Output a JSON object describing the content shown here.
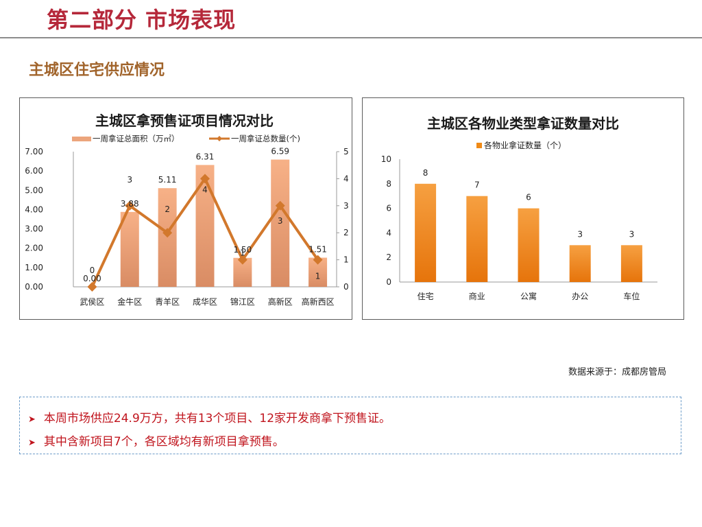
{
  "header": {
    "title": "第二部分 市场表现"
  },
  "section": {
    "title": "主城区住宅供应情况"
  },
  "chart_data": [
    {
      "type": "bar",
      "title": "主城区拿预售证项目情况对比",
      "categories": [
        "武侯区",
        "金牛区",
        "青羊区",
        "成华区",
        "锦江区",
        "高新区",
        "高新西区"
      ],
      "series": [
        {
          "name": "一周拿证总面积（万㎡）",
          "type": "bar",
          "axis": "left",
          "values": [
            0.0,
            3.88,
            5.11,
            6.31,
            1.5,
            6.59,
            1.51
          ],
          "value_labels": [
            "0.00",
            "3.88",
            "5.11",
            "6.31",
            "1.50",
            "6.59",
            "1.51"
          ],
          "color": "#e99a72"
        },
        {
          "name": "一周拿证总数量(个)",
          "type": "line",
          "axis": "right",
          "values": [
            0,
            3,
            2,
            4,
            1,
            3,
            1
          ],
          "value_labels": [
            "0",
            "3",
            "2",
            "4",
            "1",
            "3",
            "1"
          ],
          "color": "#d2782c"
        }
      ],
      "y_left": {
        "ticks": [
          "0.00",
          "1.00",
          "2.00",
          "3.00",
          "4.00",
          "5.00",
          "6.00",
          "7.00"
        ],
        "ylim": [
          0,
          7
        ]
      },
      "y_right": {
        "ticks": [
          "0",
          "1",
          "2",
          "3",
          "4",
          "5"
        ],
        "ylim": [
          0,
          5
        ]
      },
      "legend": "top",
      "grid": false
    },
    {
      "type": "bar",
      "title": "主城区各物业类型拿证数量对比",
      "categories": [
        "住宅",
        "商业",
        "公寓",
        "办公",
        "车位"
      ],
      "series": [
        {
          "name": "各物业拿证数量（个）",
          "values": [
            8,
            7,
            6,
            3,
            3
          ],
          "value_labels": [
            "8",
            "7",
            "6",
            "3",
            "3"
          ],
          "color": "#f08a16"
        }
      ],
      "y_axis": {
        "ticks": [
          "0",
          "2",
          "4",
          "6",
          "8",
          "10"
        ],
        "ylim": [
          0,
          10
        ]
      },
      "legend": "top",
      "grid": false
    }
  ],
  "source": "数据来源于：成都房管局",
  "notes": {
    "bullet_icon": "arrow-right-icon",
    "items": [
      "本周市场供应24.9万方，共有13个项目、12家开发商拿下预售证。",
      "其中含新项目7个，各区域均有新项目拿预售。"
    ]
  }
}
